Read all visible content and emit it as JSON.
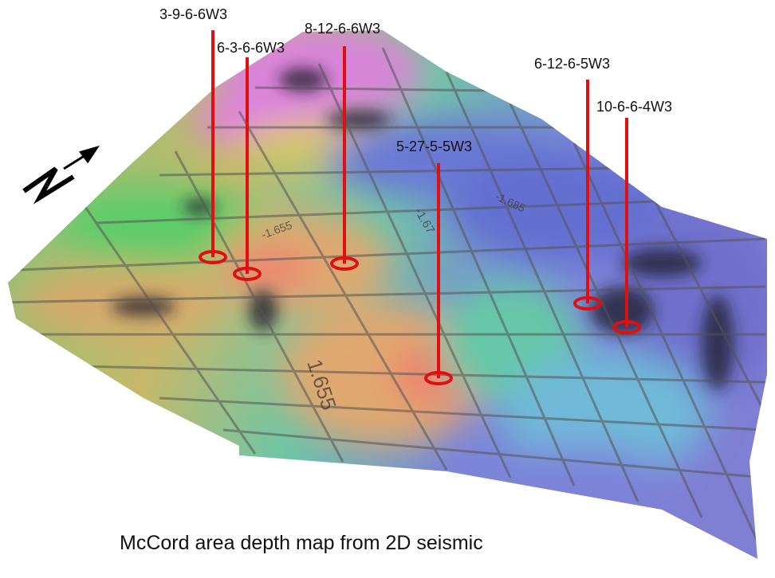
{
  "wells": [
    {
      "label": "3-9-6-6W3"
    },
    {
      "label": "6-3-6-6W3"
    },
    {
      "label": "8-12-6-6W3"
    },
    {
      "label": "5-27-5-5W3"
    },
    {
      "label": "6-12-6-5W3"
    },
    {
      "label": "10-6-6-4W3"
    }
  ],
  "contour_labels": [
    "1.655",
    "-1.685",
    "-1.67",
    "-1.655"
  ],
  "caption": "McCord area depth map from 2D seismic"
}
